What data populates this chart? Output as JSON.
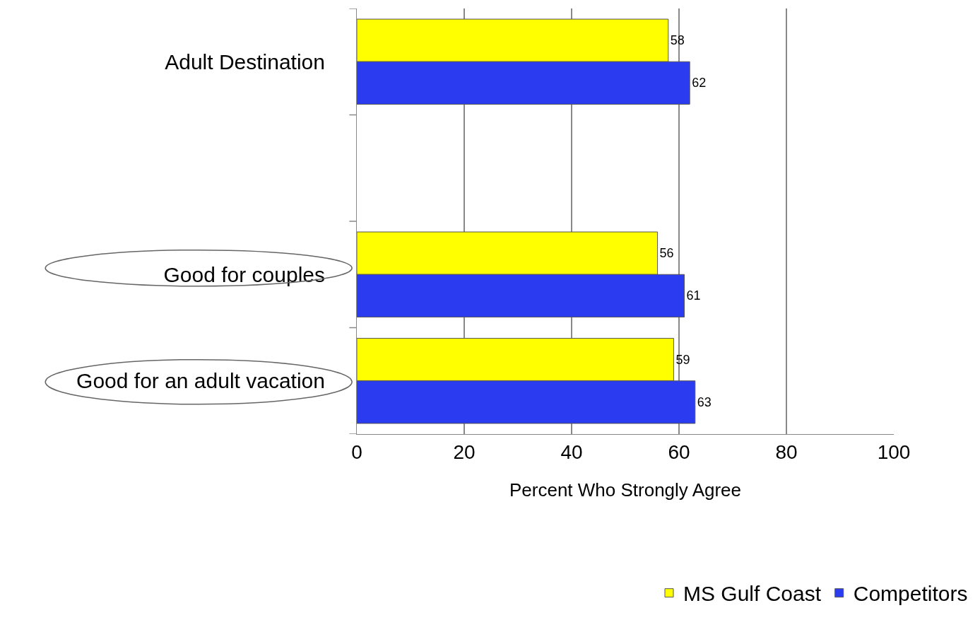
{
  "chart_data": {
    "type": "bar",
    "orientation": "horizontal",
    "xlabel": "Percent Who Strongly Agree",
    "categories": [
      "Adult Destination",
      null,
      "Good for couples",
      "Good for an adult vacation"
    ],
    "series": [
      {
        "name": "MS Gulf Coast",
        "color": "#ffff00",
        "values": [
          58,
          null,
          56,
          59
        ]
      },
      {
        "name": "Competitors",
        "color": "#2b3cf0",
        "values": [
          62,
          null,
          61,
          63
        ]
      }
    ],
    "xlim": [
      0,
      100
    ],
    "xticks": [
      0,
      20,
      40,
      60,
      80,
      100
    ],
    "grid": "x",
    "legend": "bottom",
    "data_labels": true
  }
}
